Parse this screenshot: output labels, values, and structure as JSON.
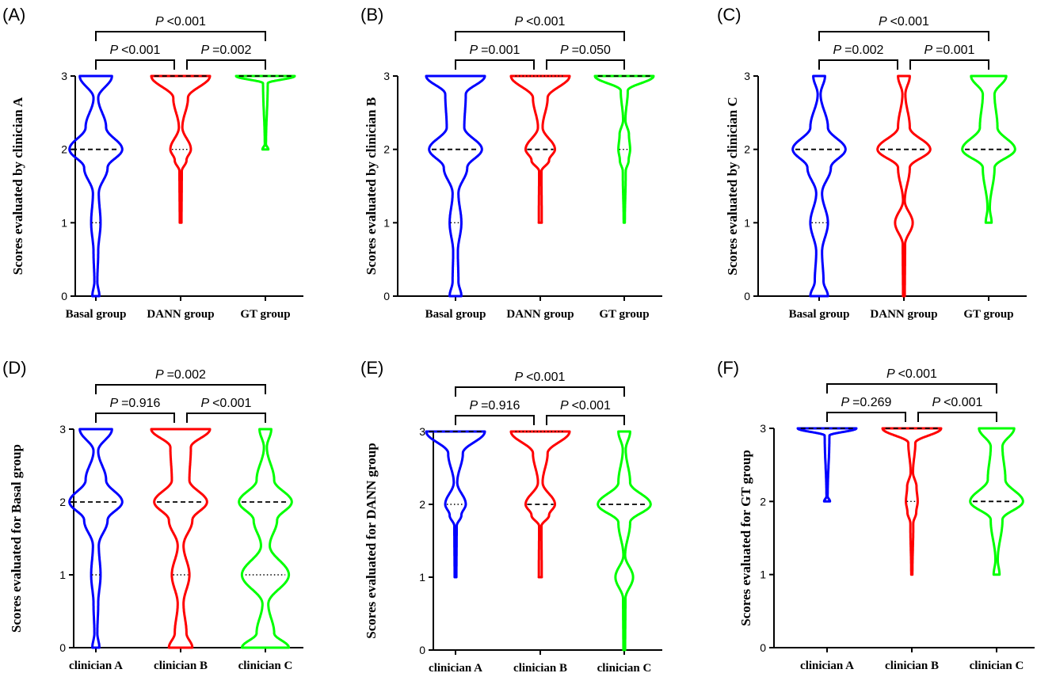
{
  "chart_data": [
    {
      "type": "violin",
      "panel_label": "(A)",
      "ylabel": "Scores evaluated by clinician A",
      "categories": [
        "Basal group",
        "DANN group",
        "GT group"
      ],
      "yticks": [
        "0",
        "1",
        "2",
        "3"
      ],
      "ylim": [
        0,
        3
      ],
      "series": [
        {
          "color": "#0000ff",
          "profile": [
            [
              0,
              0.12
            ],
            [
              0.2,
              0.05
            ],
            [
              0.6,
              0.08
            ],
            [
              1.0,
              0.16
            ],
            [
              1.4,
              0.1
            ],
            [
              1.75,
              0.4
            ],
            [
              2.0,
              0.9
            ],
            [
              2.3,
              0.35
            ],
            [
              2.7,
              0.08
            ],
            [
              3.0,
              0.55
            ]
          ],
          "median": 2,
          "q1": 1,
          "q3": 2
        },
        {
          "color": "#ff0000",
          "profile": [
            [
              1.0,
              0.03
            ],
            [
              1.7,
              0.04
            ],
            [
              1.85,
              0.2
            ],
            [
              2.0,
              0.35
            ],
            [
              2.3,
              0.06
            ],
            [
              2.7,
              0.25
            ],
            [
              3.0,
              1.0
            ]
          ],
          "median": 3,
          "q1": 2,
          "q3": 3
        },
        {
          "color": "#00ff00",
          "profile": [
            [
              2.0,
              0.1
            ],
            [
              2.07,
              0.02
            ],
            [
              2.9,
              0.08
            ],
            [
              3.0,
              1.0
            ]
          ],
          "median": 3,
          "q1": 3,
          "q3": 3
        }
      ],
      "comparisons": [
        {
          "a": 0,
          "b": 1,
          "p": "<0.001"
        },
        {
          "a": 1,
          "b": 2,
          "p": "=0.002"
        },
        {
          "a": 0,
          "b": 2,
          "p": "<0.001"
        }
      ]
    },
    {
      "type": "violin",
      "panel_label": "(B)",
      "ylabel": "Scores evaluated by clinician B",
      "categories": [
        "Basal group",
        "DANN group",
        "GT group"
      ],
      "yticks": [
        "0",
        "1",
        "2",
        "3"
      ],
      "ylim": [
        0,
        3
      ],
      "series": [
        {
          "color": "#0000ff",
          "profile": [
            [
              0,
              0.2
            ],
            [
              0.2,
              0.1
            ],
            [
              0.6,
              0.08
            ],
            [
              1.0,
              0.2
            ],
            [
              1.4,
              0.1
            ],
            [
              1.75,
              0.4
            ],
            [
              2.0,
              0.9
            ],
            [
              2.3,
              0.3
            ],
            [
              2.75,
              0.35
            ],
            [
              3.0,
              1.0
            ]
          ],
          "median": 2,
          "q1": 1,
          "q3": 2
        },
        {
          "color": "#ff0000",
          "profile": [
            [
              1.0,
              0.05
            ],
            [
              1.7,
              0.04
            ],
            [
              1.85,
              0.3
            ],
            [
              2.0,
              0.5
            ],
            [
              2.3,
              0.08
            ],
            [
              2.7,
              0.25
            ],
            [
              3.0,
              1.0
            ]
          ],
          "median": 2,
          "q1": 2,
          "q3": 3
        },
        {
          "color": "#00ff00",
          "profile": [
            [
              1.0,
              0.02
            ],
            [
              1.7,
              0.05
            ],
            [
              1.85,
              0.15
            ],
            [
              2.0,
              0.2
            ],
            [
              2.2,
              0.16
            ],
            [
              2.4,
              0.04
            ],
            [
              2.8,
              0.12
            ],
            [
              3.0,
              1.0
            ]
          ],
          "median": 3,
          "q1": 2,
          "q3": 3
        }
      ],
      "comparisons": [
        {
          "a": 0,
          "b": 1,
          "p": "=0.001"
        },
        {
          "a": 1,
          "b": 2,
          "p": "=0.050"
        },
        {
          "a": 0,
          "b": 2,
          "p": "<0.001"
        }
      ]
    },
    {
      "type": "violin",
      "panel_label": "(C)",
      "ylabel": "Scores evaluated by clinician C",
      "categories": [
        "Basal group",
        "DANN group",
        "GT group"
      ],
      "yticks": [
        "0",
        "1",
        "2",
        "3"
      ],
      "ylim": [
        0,
        3
      ],
      "series": [
        {
          "color": "#0000ff",
          "profile": [
            [
              0,
              0.3
            ],
            [
              0.2,
              0.15
            ],
            [
              0.6,
              0.1
            ],
            [
              1.0,
              0.3
            ],
            [
              1.4,
              0.1
            ],
            [
              1.75,
              0.4
            ],
            [
              2.0,
              0.9
            ],
            [
              2.3,
              0.3
            ],
            [
              2.75,
              0.05
            ],
            [
              3.0,
              0.2
            ]
          ],
          "median": 2,
          "q1": 1,
          "q3": 2
        },
        {
          "color": "#ff0000",
          "profile": [
            [
              0,
              0.03
            ],
            [
              0.7,
              0.04
            ],
            [
              1.0,
              0.3
            ],
            [
              1.3,
              0.03
            ],
            [
              1.75,
              0.2
            ],
            [
              2.0,
              0.9
            ],
            [
              2.3,
              0.2
            ],
            [
              2.75,
              0.05
            ],
            [
              3.0,
              0.2
            ]
          ],
          "median": 2,
          "q1": 2,
          "q3": 2
        },
        {
          "color": "#00ff00",
          "profile": [
            [
              1.0,
              0.1
            ],
            [
              1.2,
              0.04
            ],
            [
              1.75,
              0.2
            ],
            [
              2.0,
              0.9
            ],
            [
              2.3,
              0.3
            ],
            [
              2.75,
              0.2
            ],
            [
              3.0,
              0.6
            ]
          ],
          "median": 2,
          "q1": 2,
          "q3": 2
        }
      ],
      "comparisons": [
        {
          "a": 0,
          "b": 1,
          "p": "=0.002"
        },
        {
          "a": 1,
          "b": 2,
          "p": "=0.001"
        },
        {
          "a": 0,
          "b": 2,
          "p": "<0.001"
        }
      ]
    },
    {
      "type": "violin",
      "panel_label": "(D)",
      "ylabel": "Scores evaluated for Basal group",
      "categories": [
        "clinician A",
        "clinician B",
        "clinician C"
      ],
      "yticks": [
        "0",
        "1",
        "2",
        "3"
      ],
      "ylim": [
        0,
        3
      ],
      "series": [
        {
          "color": "#0000ff",
          "profile": [
            [
              0,
              0.12
            ],
            [
              0.2,
              0.05
            ],
            [
              0.6,
              0.08
            ],
            [
              1.0,
              0.16
            ],
            [
              1.4,
              0.1
            ],
            [
              1.75,
              0.4
            ],
            [
              2.0,
              0.9
            ],
            [
              2.3,
              0.35
            ],
            [
              2.7,
              0.08
            ],
            [
              3.0,
              0.55
            ]
          ],
          "median": 2,
          "q1": 1,
          "q3": 2
        },
        {
          "color": "#ff0000",
          "profile": [
            [
              0,
              0.4
            ],
            [
              0.2,
              0.2
            ],
            [
              0.6,
              0.1
            ],
            [
              1.0,
              0.3
            ],
            [
              1.4,
              0.1
            ],
            [
              1.75,
              0.4
            ],
            [
              2.0,
              0.9
            ],
            [
              2.3,
              0.3
            ],
            [
              2.75,
              0.35
            ],
            [
              3.0,
              1.0
            ]
          ],
          "median": 2,
          "q1": 1,
          "q3": 2
        },
        {
          "color": "#00ff00",
          "profile": [
            [
              0,
              0.8
            ],
            [
              0.2,
              0.3
            ],
            [
              0.6,
              0.1
            ],
            [
              1.0,
              0.8
            ],
            [
              1.4,
              0.15
            ],
            [
              1.75,
              0.4
            ],
            [
              2.0,
              0.9
            ],
            [
              2.3,
              0.3
            ],
            [
              2.75,
              0.05
            ],
            [
              3.0,
              0.2
            ]
          ],
          "median": 2,
          "q1": 1,
          "q3": 2
        }
      ],
      "comparisons": [
        {
          "a": 0,
          "b": 1,
          "p": "=0.916"
        },
        {
          "a": 1,
          "b": 2,
          "p": "<0.001"
        },
        {
          "a": 0,
          "b": 2,
          "p": "=0.002"
        }
      ]
    },
    {
      "type": "violin",
      "panel_label": "(E)",
      "ylabel": "Scores evaluated for DANN group",
      "categories": [
        "clinician A",
        "clinician B",
        "clinician C"
      ],
      "yticks": [
        "0",
        "1",
        "2",
        "3"
      ],
      "ylim": [
        0,
        3
      ],
      "series": [
        {
          "color": "#0000ff",
          "profile": [
            [
              1.0,
              0.03
            ],
            [
              1.7,
              0.04
            ],
            [
              1.85,
              0.2
            ],
            [
              2.0,
              0.35
            ],
            [
              2.3,
              0.06
            ],
            [
              2.7,
              0.25
            ],
            [
              3.0,
              1.0
            ]
          ],
          "median": 3,
          "q1": 2,
          "q3": 3
        },
        {
          "color": "#ff0000",
          "profile": [
            [
              1.0,
              0.05
            ],
            [
              1.7,
              0.04
            ],
            [
              1.85,
              0.3
            ],
            [
              2.0,
              0.5
            ],
            [
              2.3,
              0.08
            ],
            [
              2.7,
              0.25
            ],
            [
              3.0,
              1.0
            ]
          ],
          "median": 2,
          "q1": 2,
          "q3": 3
        },
        {
          "color": "#00ff00",
          "profile": [
            [
              0,
              0.03
            ],
            [
              0.7,
              0.04
            ],
            [
              1.0,
              0.3
            ],
            [
              1.3,
              0.03
            ],
            [
              1.75,
              0.2
            ],
            [
              2.0,
              0.9
            ],
            [
              2.3,
              0.2
            ],
            [
              2.75,
              0.05
            ],
            [
              3.0,
              0.2
            ]
          ],
          "median": 2,
          "q1": 2,
          "q3": 2
        }
      ],
      "comparisons": [
        {
          "a": 0,
          "b": 1,
          "p": "=0.916"
        },
        {
          "a": 1,
          "b": 2,
          "p": "<0.001"
        },
        {
          "a": 0,
          "b": 2,
          "p": "<0.001"
        }
      ]
    },
    {
      "type": "violin",
      "panel_label": "(F)",
      "ylabel": "Scores evaluated for GT group",
      "categories": [
        "clinician A",
        "clinician B",
        "clinician C"
      ],
      "yticks": [
        "0",
        "1",
        "2",
        "3"
      ],
      "ylim": [
        0,
        3
      ],
      "series": [
        {
          "color": "#0000ff",
          "profile": [
            [
              2.0,
              0.1
            ],
            [
              2.07,
              0.02
            ],
            [
              2.9,
              0.08
            ],
            [
              3.0,
              1.0
            ]
          ],
          "median": 3,
          "q1": 3,
          "q3": 3
        },
        {
          "color": "#ff0000",
          "profile": [
            [
              1.0,
              0.02
            ],
            [
              1.7,
              0.05
            ],
            [
              1.85,
              0.15
            ],
            [
              2.0,
              0.2
            ],
            [
              2.2,
              0.16
            ],
            [
              2.4,
              0.04
            ],
            [
              2.8,
              0.12
            ],
            [
              3.0,
              1.0
            ]
          ],
          "median": 3,
          "q1": 2,
          "q3": 3
        },
        {
          "color": "#00ff00",
          "profile": [
            [
              1.0,
              0.1
            ],
            [
              1.2,
              0.04
            ],
            [
              1.75,
              0.2
            ],
            [
              2.0,
              0.9
            ],
            [
              2.3,
              0.3
            ],
            [
              2.75,
              0.2
            ],
            [
              3.0,
              0.6
            ]
          ],
          "median": 2,
          "q1": 2,
          "q3": 2
        }
      ],
      "comparisons": [
        {
          "a": 0,
          "b": 1,
          "p": "=0.269"
        },
        {
          "a": 1,
          "b": 2,
          "p": "<0.001"
        },
        {
          "a": 0,
          "b": 2,
          "p": "<0.001"
        }
      ]
    }
  ]
}
